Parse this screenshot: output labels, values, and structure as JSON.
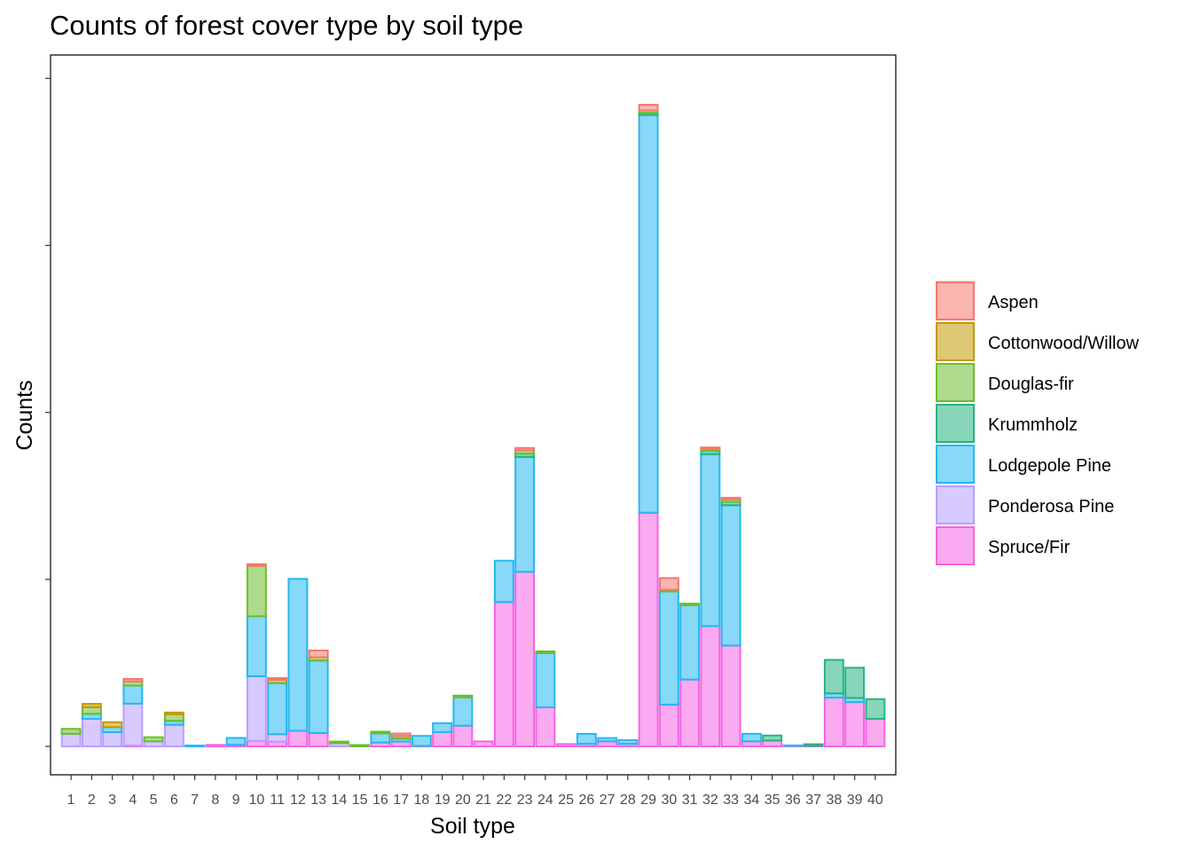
{
  "chart_data": {
    "type": "bar",
    "stacked": true,
    "title": "Counts of forest cover type by soil type",
    "xlabel": "Soil type",
    "ylabel": "Counts",
    "y_tick_labels_visible": false,
    "y_ticks": [
      0,
      1000,
      2000,
      3000,
      4000
    ],
    "ylim": [
      -170,
      4140
    ],
    "legend_position": "right",
    "grid": false,
    "categories": [
      "1",
      "2",
      "3",
      "4",
      "5",
      "6",
      "7",
      "8",
      "9",
      "10",
      "11",
      "12",
      "13",
      "14",
      "15",
      "16",
      "17",
      "18",
      "19",
      "20",
      "21",
      "22",
      "23",
      "24",
      "25",
      "26",
      "27",
      "28",
      "29",
      "30",
      "31",
      "32",
      "33",
      "34",
      "35",
      "36",
      "37",
      "38",
      "39",
      "40"
    ],
    "series": [
      {
        "name": "Spruce/Fir",
        "color": "#F564E3",
        "values": [
          0,
          0,
          0,
          5,
          0,
          0,
          0,
          9,
          9,
          33,
          28,
          93,
          80,
          0,
          0,
          23,
          29,
          3,
          85,
          124,
          30,
          864,
          1045,
          234,
          14,
          15,
          30,
          15,
          1399,
          250,
          400,
          720,
          604,
          30,
          35,
          3,
          3,
          292,
          265,
          165
        ]
      },
      {
        "name": "Ponderosa Pine",
        "color": "#B79FFF",
        "values": [
          75,
          165,
          85,
          251,
          30,
          129,
          0,
          0,
          0,
          387,
          45,
          0,
          0,
          19,
          0,
          0,
          0,
          0,
          0,
          0,
          0,
          0,
          0,
          0,
          0,
          0,
          0,
          0,
          0,
          0,
          0,
          0,
          0,
          0,
          0,
          0,
          0,
          0,
          0,
          0
        ]
      },
      {
        "name": "Lodgepole Pine",
        "color": "#26B8F0",
        "values": [
          0,
          30,
          30,
          108,
          0,
          24,
          5,
          0,
          42,
          359,
          306,
          910,
          434,
          0,
          0,
          55,
          18,
          60,
          54,
          170,
          0,
          248,
          688,
          325,
          0,
          60,
          20,
          23,
          2382,
          678,
          445,
          1030,
          840,
          45,
          0,
          3,
          0,
          25,
          25,
          0
        ]
      },
      {
        "name": "Krummholz",
        "color": "#26B482",
        "values": [
          0,
          0,
          0,
          0,
          0,
          0,
          0,
          0,
          0,
          0,
          0,
          0,
          0,
          0,
          0,
          0,
          0,
          0,
          0,
          0,
          0,
          0,
          20,
          0,
          0,
          0,
          0,
          0,
          12,
          0,
          0,
          20,
          20,
          0,
          30,
          0,
          10,
          201,
          181,
          118
        ]
      },
      {
        "name": "Douglas-fir",
        "color": "#6CBE2C",
        "values": [
          30,
          40,
          0,
          25,
          25,
          40,
          0,
          0,
          0,
          302,
          20,
          0,
          20,
          10,
          8,
          10,
          15,
          0,
          0,
          10,
          0,
          0,
          20,
          10,
          0,
          0,
          0,
          0,
          15,
          10,
          10,
          10,
          15,
          0,
          0,
          0,
          0,
          0,
          0,
          0
        ]
      },
      {
        "name": "Cottonwood/Willow",
        "color": "#C49A00",
        "values": [
          0,
          20,
          30,
          0,
          0,
          10,
          0,
          0,
          0,
          0,
          0,
          0,
          0,
          0,
          0,
          0,
          0,
          0,
          0,
          0,
          0,
          0,
          0,
          0,
          0,
          0,
          0,
          0,
          0,
          0,
          0,
          0,
          0,
          0,
          0,
          0,
          0,
          0,
          0,
          0
        ]
      },
      {
        "name": "Aspen",
        "color": "#F8766D",
        "values": [
          0,
          0,
          0,
          15,
          0,
          0,
          0,
          0,
          0,
          10,
          10,
          0,
          40,
          0,
          0,
          0,
          15,
          0,
          0,
          0,
          0,
          0,
          14,
          0,
          0,
          0,
          0,
          0,
          34,
          70,
          0,
          10,
          10,
          0,
          0,
          0,
          0,
          0,
          0,
          0
        ]
      }
    ],
    "legend_order": [
      "Aspen",
      "Cottonwood/Willow",
      "Douglas-fir",
      "Krummholz",
      "Lodgepole Pine",
      "Ponderosa Pine",
      "Spruce/Fir"
    ]
  }
}
